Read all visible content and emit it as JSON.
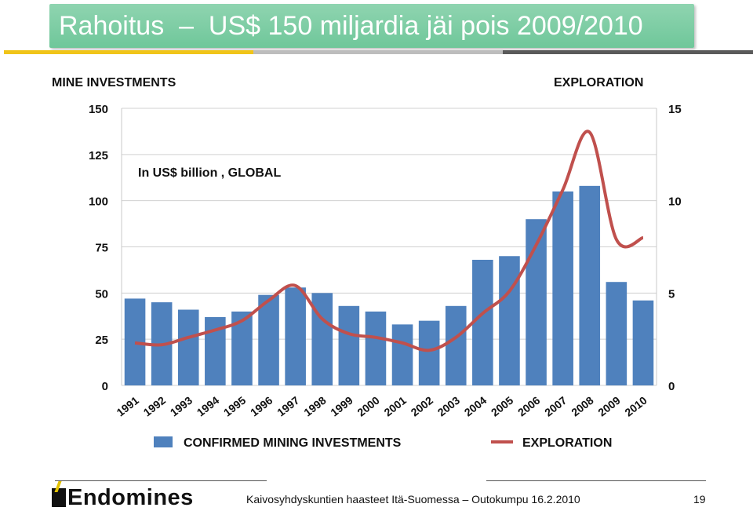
{
  "header": {
    "title_word": "Rahoitus",
    "title_rest": "US$ 150 miljardia jäi pois 2009/2010",
    "accent_color": "#7fcfa6"
  },
  "labels": {
    "left_axis_title": "MINE INVESTMENTS",
    "right_axis_title": "EXPLORATION",
    "note": "In US$ billion , GLOBAL"
  },
  "footer": {
    "logo": "Endomines",
    "text": "Kaivosyhdyskuntien haasteet Itä-Suomessa – Outokumpu 16.2.2010",
    "page": "19"
  },
  "chart_data": {
    "type": "bar",
    "categories": [
      "1991",
      "1992",
      "1993",
      "1994",
      "1995",
      "1996",
      "1997",
      "1998",
      "1999",
      "2000",
      "2001",
      "2002",
      "2003",
      "2004",
      "2005",
      "2006",
      "2007",
      "2008",
      "2009",
      "2010"
    ],
    "series": [
      {
        "name": "CONFIRMED MINING INVESTMENTS",
        "type": "bar",
        "axis": "left",
        "color": "#4f81bd",
        "values": [
          47,
          45,
          41,
          37,
          40,
          49,
          53,
          50,
          43,
          40,
          33,
          35,
          43,
          68,
          70,
          90,
          105,
          108,
          56,
          46
        ]
      },
      {
        "name": "EXPLORATION",
        "type": "line",
        "axis": "right",
        "color": "#c0504d",
        "values": [
          2.3,
          2.2,
          2.6,
          3.0,
          3.5,
          4.6,
          5.4,
          3.6,
          2.8,
          2.6,
          2.3,
          1.9,
          2.6,
          3.9,
          5.1,
          7.6,
          10.6,
          13.7,
          7.9,
          8.0
        ]
      }
    ],
    "ylim_left": [
      0,
      150
    ],
    "yticks_left": [
      "0",
      "25",
      "50",
      "75",
      "100",
      "125",
      "150"
    ],
    "ylim_right": [
      0,
      15
    ],
    "yticks_right": [
      "0",
      "5",
      "10",
      "15"
    ],
    "grid": true,
    "legend_position": "bottom"
  }
}
